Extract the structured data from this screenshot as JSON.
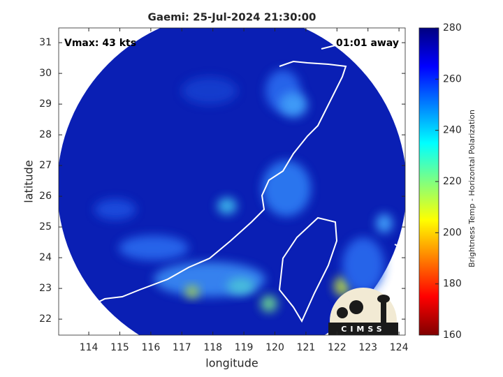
{
  "chart_data": {
    "type": "map",
    "title": "Gaemi: 25-Jul-2024 21:30:00",
    "annotations": [
      "Vmax: 43 kts",
      "01:01 away"
    ],
    "xlabel": "longitude",
    "ylabel": "latitude",
    "xlim": [
      113.03,
      124.2
    ],
    "ylim": [
      21.48,
      31.48
    ],
    "xticks": [
      114,
      115,
      116,
      117,
      118,
      119,
      120,
      121,
      122,
      123,
      124
    ],
    "yticks": [
      22,
      23,
      24,
      25,
      26,
      27,
      28,
      29,
      30,
      31
    ],
    "colorbar": {
      "label": "Brightness Temp - Horizontal Polarization",
      "lim": [
        160,
        280
      ],
      "ticks": [
        160,
        180,
        200,
        220,
        240,
        260,
        280
      ],
      "colormap": [
        "#800000",
        "#ff0000",
        "#ff8000",
        "#ffff00",
        "#80ff80",
        "#00ffff",
        "#0080ff",
        "#0000ff",
        "#000080"
      ]
    },
    "logo_text": "CIMSS"
  }
}
